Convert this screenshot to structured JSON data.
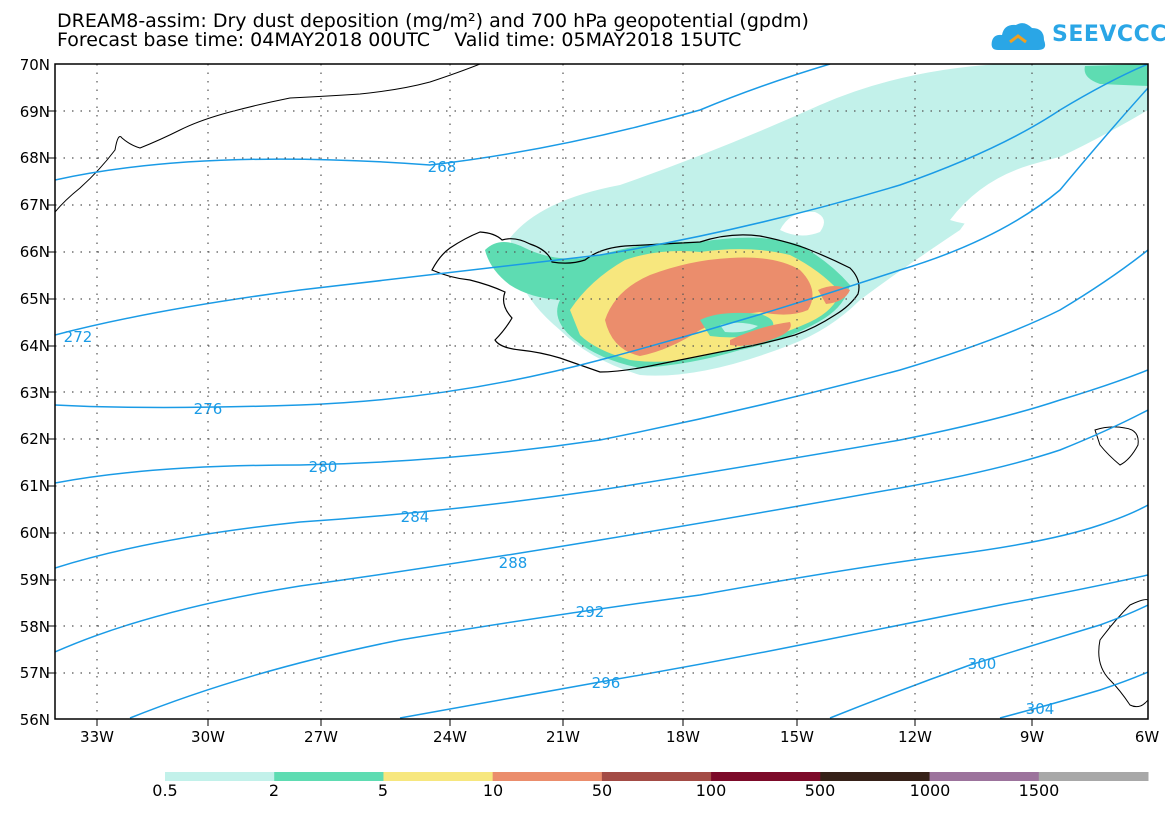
{
  "title_line1": "DREAM8-assim: Dry dust deposition (mg/m²) and 700 hPa geopotential (gpdm)",
  "title_line2": "Forecast base time: 04MAY2018 00UTC    Valid time: 05MAY2018 15UTC",
  "logo_text": "SEEVCCC",
  "lat_labels": [
    "70N",
    "69N",
    "68N",
    "67N",
    "66N",
    "65N",
    "64N",
    "63N",
    "62N",
    "61N",
    "60N",
    "59N",
    "58N",
    "57N",
    "56N"
  ],
  "lon_labels": [
    "33W",
    "30W",
    "27W",
    "24W",
    "21W",
    "18W",
    "15W",
    "12W",
    "9W",
    "6W"
  ],
  "contour_labels": [
    "268",
    "272",
    "276",
    "280",
    "284",
    "288",
    "292",
    "296",
    "300",
    "304"
  ],
  "colorbar": {
    "colors": [
      "#c2f1ea",
      "#5edcb2",
      "#f7e77e",
      "#eb8d6c",
      "#a34b45",
      "#7c0a29",
      "#362118",
      "#9c739c",
      "#a8a8a8"
    ],
    "labels": [
      "0.5",
      "2",
      "5",
      "10",
      "50",
      "100",
      "500",
      "1000",
      "1500"
    ]
  },
  "colors": {
    "contour": "#1a9be6",
    "coast": "#000000"
  }
}
